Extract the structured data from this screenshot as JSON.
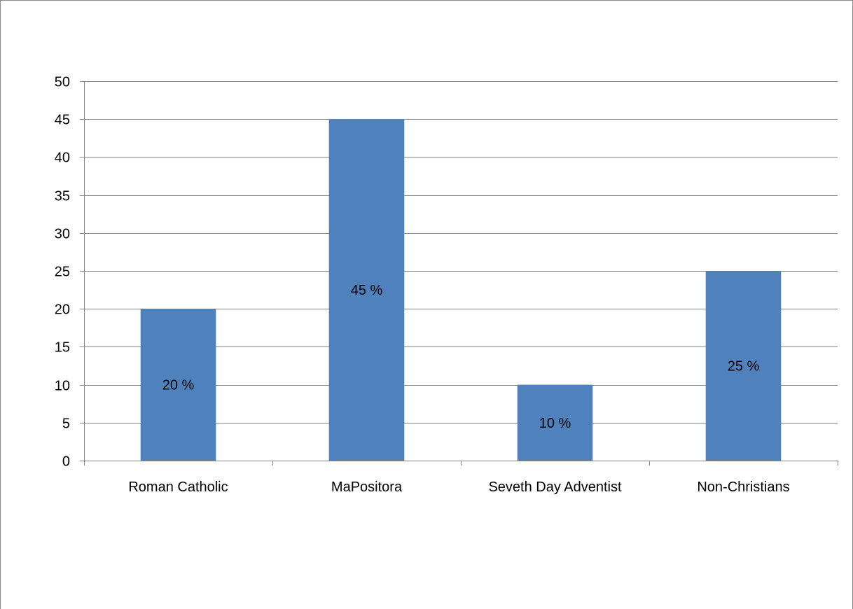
{
  "chart_data": {
    "type": "bar",
    "title": "",
    "xlabel": "",
    "ylabel": "",
    "categories": [
      "Roman Catholic",
      "MaPositora",
      "Seveth Day Adventist",
      "Non-Christians"
    ],
    "values": [
      20,
      45,
      10,
      25
    ],
    "data_labels": [
      "20 %",
      "45 %",
      "10 %",
      "25 %"
    ],
    "ylim": [
      0,
      50
    ],
    "yticks": [
      0,
      5,
      10,
      15,
      20,
      25,
      30,
      35,
      40,
      45,
      50
    ],
    "grid": true,
    "legend": "none",
    "colors": {
      "bar": "#4f81bd",
      "grid": "#868686",
      "axis": "#868686"
    }
  }
}
